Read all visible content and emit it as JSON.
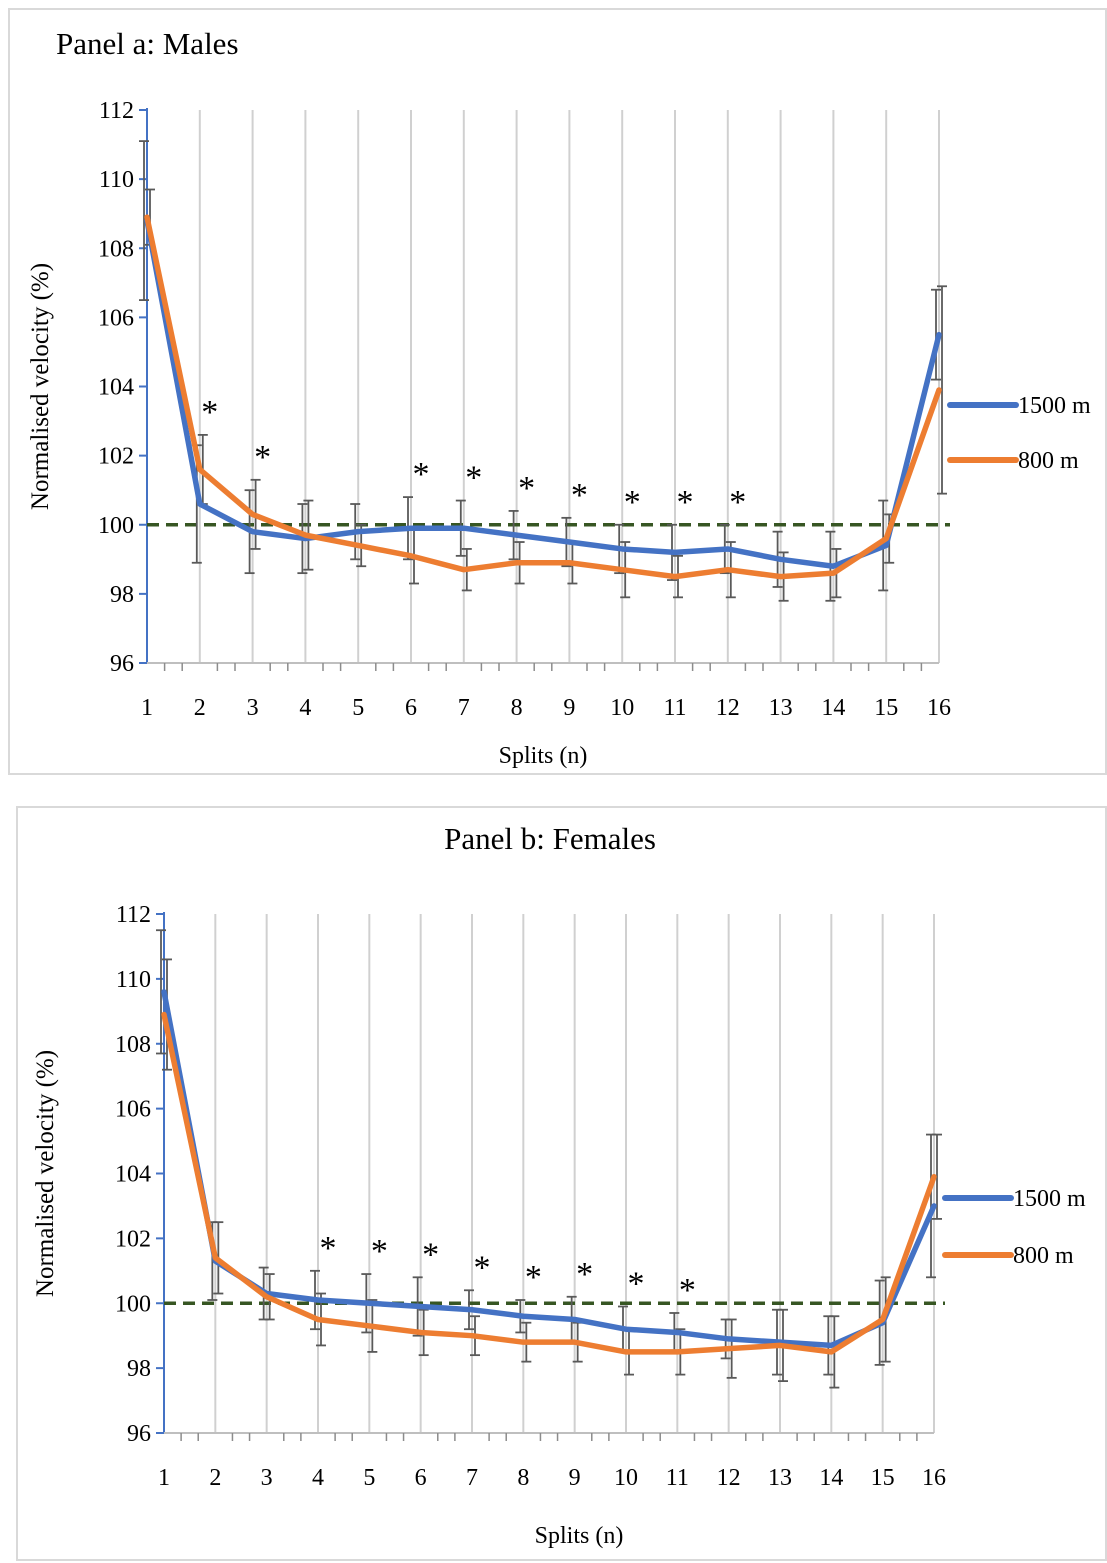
{
  "chart_data": [
    {
      "type": "line",
      "title": "Panel a: Males",
      "xlabel": "Splits (n)",
      "ylabel": "Normalised velocity (%)",
      "categories": [
        "1",
        "2",
        "3",
        "4",
        "5",
        "6",
        "7",
        "8",
        "9",
        "10",
        "11",
        "12",
        "13",
        "14",
        "15",
        "16"
      ],
      "ylim": [
        96,
        112
      ],
      "yticks": [
        96,
        98,
        100,
        102,
        104,
        106,
        108,
        110,
        112
      ],
      "reference_line": 100,
      "grid": "vertical",
      "legend_position": "right",
      "series": [
        {
          "name": "1500 m",
          "color": "#4472C4",
          "values": [
            108.8,
            100.6,
            99.8,
            99.6,
            99.8,
            99.9,
            99.9,
            99.7,
            99.5,
            99.3,
            99.2,
            99.3,
            99.0,
            98.8,
            99.4,
            105.5
          ],
          "errors": [
            2.3,
            1.7,
            1.2,
            1.0,
            0.8,
            0.9,
            0.8,
            0.7,
            0.7,
            0.7,
            0.8,
            0.7,
            0.8,
            1.0,
            1.3,
            1.3
          ]
        },
        {
          "name": "800 m",
          "color": "#ED7D31",
          "values": [
            108.9,
            101.6,
            100.3,
            99.7,
            99.4,
            99.1,
            98.7,
            98.9,
            98.9,
            98.7,
            98.5,
            98.7,
            98.5,
            98.6,
            99.6,
            103.9
          ],
          "errors": [
            0.8,
            1.0,
            1.0,
            1.0,
            0.6,
            0.8,
            0.6,
            0.6,
            0.6,
            0.8,
            0.6,
            0.8,
            0.7,
            0.7,
            0.7,
            3.0
          ]
        }
      ],
      "significance": [
        "2",
        "3",
        "6",
        "7",
        "8",
        "9",
        "10",
        "11",
        "12"
      ],
      "significance_symbol": "*"
    },
    {
      "type": "line",
      "title": "Panel b: Females",
      "xlabel": "Splits (n)",
      "ylabel": "Normalised velocity (%)",
      "categories": [
        "1",
        "2",
        "3",
        "4",
        "5",
        "6",
        "7",
        "8",
        "9",
        "10",
        "11",
        "12",
        "13",
        "14",
        "15",
        "16"
      ],
      "ylim": [
        96,
        112
      ],
      "yticks": [
        96,
        98,
        100,
        102,
        104,
        106,
        108,
        110,
        112
      ],
      "reference_line": 100,
      "grid": "vertical",
      "legend_position": "right",
      "series": [
        {
          "name": "1500 m",
          "color": "#4472C4",
          "values": [
            109.6,
            101.3,
            100.3,
            100.1,
            100.0,
            99.9,
            99.8,
            99.6,
            99.5,
            99.2,
            99.1,
            98.9,
            98.8,
            98.7,
            99.4,
            103.0
          ],
          "errors": [
            1.9,
            1.2,
            0.8,
            0.9,
            0.9,
            0.9,
            0.6,
            0.5,
            0.7,
            0.7,
            0.6,
            0.6,
            1.0,
            0.9,
            1.3,
            2.2
          ]
        },
        {
          "name": "800 m",
          "color": "#ED7D31",
          "values": [
            108.9,
            101.4,
            100.2,
            99.5,
            99.3,
            99.1,
            99.0,
            98.8,
            98.8,
            98.5,
            98.5,
            98.6,
            98.7,
            98.5,
            99.5,
            103.9
          ],
          "errors": [
            1.7,
            1.1,
            0.7,
            0.8,
            0.8,
            0.7,
            0.6,
            0.6,
            0.6,
            0.7,
            0.7,
            0.9,
            1.1,
            1.1,
            1.3,
            1.3
          ]
        }
      ],
      "significance": [
        "4",
        "5",
        "6",
        "7",
        "8",
        "9",
        "10",
        "11"
      ],
      "significance_symbol": "*"
    }
  ]
}
